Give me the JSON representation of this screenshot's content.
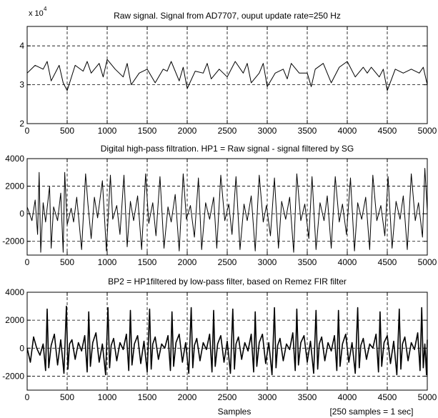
{
  "chart_data": [
    {
      "type": "line",
      "title": "Raw signal. Signal from AD7707, ouput update rate=250 Hz",
      "xlabel": "",
      "ylabel": "",
      "multiplier": {
        "base": "x 10",
        "exponent": "4"
      },
      "xlim": [
        0,
        5000
      ],
      "ylim": [
        2,
        4.5
      ],
      "xticks": [
        0,
        500,
        1000,
        1500,
        2000,
        2500,
        3000,
        3500,
        4000,
        4500,
        5000
      ],
      "xtick_labels": [
        "0",
        "500",
        "1000",
        "1500",
        "2000",
        "2500",
        "3000",
        "3500",
        "4000",
        "4500",
        "5000"
      ],
      "yticks": [
        2,
        3,
        4
      ],
      "ytick_labels": [
        "2",
        "3",
        "4"
      ],
      "grid": true,
      "series": [
        {
          "x": [
            0,
            100,
            200,
            250,
            300,
            400,
            450,
            500,
            600,
            700,
            750,
            800,
            900,
            950,
            1000,
            1100,
            1200,
            1250,
            1300,
            1400,
            1500,
            1600,
            1700,
            1750,
            1800,
            1900,
            1950,
            2000,
            2100,
            2200,
            2250,
            2300,
            2400,
            2500,
            2600,
            2700,
            2750,
            2800,
            2900,
            2950,
            3000,
            3100,
            3200,
            3250,
            3300,
            3400,
            3500,
            3550,
            3600,
            3700,
            3800,
            3900,
            4000,
            4100,
            4200,
            4250,
            4300,
            4400,
            4450,
            4500,
            4600,
            4700,
            4800,
            4900,
            4950,
            5000
          ],
          "values": [
            3.3,
            3.5,
            3.4,
            3.6,
            3.1,
            3.5,
            3.05,
            2.85,
            3.5,
            3.35,
            3.6,
            3.3,
            3.55,
            3.2,
            3.65,
            3.4,
            3.2,
            3.55,
            3.0,
            3.3,
            3.4,
            3.05,
            3.4,
            3.35,
            3.6,
            3.1,
            3.45,
            2.9,
            3.35,
            3.3,
            3.55,
            3.15,
            3.4,
            3.2,
            3.6,
            3.3,
            3.55,
            3.05,
            3.3,
            3.55,
            2.95,
            3.3,
            3.4,
            3.15,
            3.55,
            3.3,
            3.3,
            2.95,
            3.4,
            3.55,
            3.05,
            3.45,
            3.6,
            3.2,
            3.45,
            3.3,
            3.45,
            3.2,
            3.4,
            2.85,
            3.4,
            3.3,
            3.4,
            3.3,
            3.45,
            3.0
          ]
        }
      ]
    },
    {
      "type": "line",
      "title": "Digital high-pass filtration. HP1 = Raw signal - signal filtered by SG",
      "xlabel": "",
      "ylabel": "",
      "xlim": [
        0,
        5000
      ],
      "ylim": [
        -3000,
        4000
      ],
      "xticks": [
        0,
        500,
        1000,
        1500,
        2000,
        2500,
        3000,
        3500,
        4000,
        4500,
        5000
      ],
      "xtick_labels": [
        "0",
        "500",
        "1000",
        "1500",
        "2000",
        "2500",
        "3000",
        "3500",
        "4000",
        "4500",
        "5000"
      ],
      "yticks": [
        -2000,
        0,
        2000,
        4000
      ],
      "ytick_labels": [
        "-2000",
        "0",
        "2000",
        "4000"
      ],
      "grid": true,
      "series": [
        {
          "x": [
            0,
            60,
            100,
            130,
            150,
            170,
            200,
            230,
            280,
            300,
            330,
            380,
            420,
            450,
            470,
            500,
            550,
            580,
            620,
            680,
            730,
            760,
            800,
            840,
            880,
            940,
            990,
            1040,
            1070,
            1120,
            1160,
            1210,
            1250,
            1290,
            1330,
            1380,
            1430,
            1480,
            1520,
            1570,
            1610,
            1660,
            1710,
            1760,
            1800,
            1850,
            1900,
            1950,
            1990,
            2040,
            2090,
            2140,
            2180,
            2230,
            2280,
            2330,
            2370,
            2420,
            2470,
            2520,
            2560,
            2610,
            2660,
            2710,
            2750,
            2800,
            2850,
            2900,
            2950,
            2990,
            3040,
            3090,
            3140,
            3180,
            3230,
            3280,
            3330,
            3370,
            3420,
            3470,
            3520,
            3560,
            3610,
            3660,
            3710,
            3750,
            3800,
            3850,
            3900,
            3940,
            3990,
            4040,
            4090,
            4130,
            4180,
            4230,
            4280,
            4320,
            4370,
            4420,
            4470,
            4510,
            4560,
            4610,
            4660,
            4700,
            4750,
            4800,
            4850,
            4890,
            4940,
            4970,
            5000
          ],
          "values": [
            500,
            -500,
            1000,
            -1500,
            3000,
            -2800,
            800,
            -600,
            2000,
            -2500,
            500,
            -500,
            1500,
            -2800,
            3000,
            -800,
            400,
            -600,
            1200,
            -2600,
            2900,
            700,
            -1800,
            1200,
            -300,
            2400,
            -2700,
            2800,
            -400,
            600,
            -1500,
            2800,
            -2400,
            900,
            -500,
            1300,
            -2600,
            2900,
            -700,
            800,
            -1600,
            2700,
            -2500,
            500,
            -600,
            1400,
            -2700,
            2900,
            -400,
            600,
            -1700,
            2600,
            -2600,
            800,
            -400,
            1200,
            -2500,
            2800,
            -500,
            700,
            -1500,
            2700,
            -2600,
            700,
            -500,
            1300,
            -2700,
            2800,
            -600,
            600,
            -1600,
            2600,
            -2500,
            900,
            -400,
            1200,
            -2800,
            2900,
            -500,
            700,
            -1800,
            2700,
            -2600,
            800,
            -500,
            1300,
            -2500,
            2700,
            -600,
            700,
            -1500,
            2600,
            -2700,
            800,
            -400,
            1200,
            -2600,
            2800,
            -500,
            600,
            -1600,
            2700,
            -2500,
            900,
            -400,
            1300,
            -2600,
            2900,
            -500,
            800,
            -1700,
            3300,
            200
          ]
        }
      ]
    },
    {
      "type": "line",
      "title": "BP2 = HP1filtered by low-pass filter, based on Remez FIR filter",
      "xlabel": "Samples",
      "ylabel": "",
      "note": "[250 samples = 1 sec]",
      "xlim": [
        0,
        5000
      ],
      "ylim": [
        -3000,
        4000
      ],
      "xticks": [
        0,
        500,
        1000,
        1500,
        2000,
        2500,
        3000,
        3500,
        4000,
        4500,
        5000
      ],
      "xtick_labels": [
        "0",
        "500",
        "1000",
        "1500",
        "2000",
        "2500",
        "3000",
        "3500",
        "4000",
        "4500",
        "5000"
      ],
      "yticks": [
        -2000,
        0,
        2000,
        4000
      ],
      "ytick_labels": [
        "-2000",
        "0",
        "2000",
        "4000"
      ],
      "grid": true,
      "series": [
        {
          "x": [
            0,
            40,
            80,
            120,
            160,
            200,
            230,
            250,
            270,
            300,
            340,
            380,
            420,
            460,
            490,
            510,
            530,
            560,
            600,
            640,
            680,
            720,
            750,
            770,
            790,
            820,
            860,
            900,
            940,
            980,
            1010,
            1030,
            1050,
            1080,
            1120,
            1160,
            1200,
            1240,
            1270,
            1290,
            1310,
            1340,
            1380,
            1420,
            1460,
            1500,
            1530,
            1550,
            1570,
            1600,
            1640,
            1680,
            1720,
            1760,
            1790,
            1810,
            1830,
            1860,
            1900,
            1940,
            1980,
            2020,
            2050,
            2070,
            2090,
            2120,
            2160,
            2200,
            2240,
            2280,
            2310,
            2330,
            2350,
            2380,
            2420,
            2460,
            2500,
            2540,
            2570,
            2590,
            2610,
            2640,
            2680,
            2720,
            2760,
            2800,
            2830,
            2850,
            2870,
            2900,
            2940,
            2980,
            3020,
            3060,
            3090,
            3110,
            3130,
            3160,
            3200,
            3240,
            3280,
            3320,
            3350,
            3370,
            3390,
            3420,
            3460,
            3500,
            3540,
            3580,
            3610,
            3630,
            3650,
            3680,
            3720,
            3760,
            3800,
            3840,
            3870,
            3890,
            3910,
            3940,
            3980,
            4020,
            4060,
            4100,
            4130,
            4150,
            4170,
            4200,
            4240,
            4280,
            4320,
            4360,
            4390,
            4410,
            4430,
            4460,
            4500,
            4540,
            4580,
            4620,
            4650,
            4670,
            4690,
            4720,
            4760,
            4800,
            4840,
            4880,
            4910,
            4930,
            4950,
            4970,
            4990,
            5000
          ],
          "values": [
            0,
            -1000,
            800,
            0,
            -500,
            300,
            -1600,
            2800,
            -1400,
            200,
            1000,
            -1200,
            600,
            -1800,
            3000,
            -1500,
            300,
            600,
            -800,
            400,
            -200,
            900,
            -1700,
            2600,
            -1300,
            400,
            1100,
            -1000,
            300,
            -1900,
            2900,
            -1400,
            200,
            700,
            -900,
            400,
            -100,
            1000,
            -1600,
            2700,
            -1200,
            300,
            900,
            -1100,
            500,
            -1700,
            2800,
            -1500,
            300,
            800,
            -800,
            300,
            0,
            900,
            -1600,
            2600,
            -1300,
            400,
            1000,
            -1000,
            400,
            -1800,
            2900,
            -1400,
            200,
            700,
            -900,
            400,
            -100,
            1000,
            -1700,
            2700,
            -1300,
            300,
            900,
            -1000,
            500,
            -1800,
            2800,
            -1500,
            300,
            800,
            -800,
            400,
            -200,
            1000,
            -1700,
            2600,
            -1300,
            400,
            1000,
            -1100,
            400,
            -1900,
            2900,
            -1400,
            200,
            700,
            -900,
            300,
            -100,
            1100,
            -1600,
            2800,
            -1200,
            400,
            900,
            -1000,
            500,
            -1800,
            2700,
            -1500,
            300,
            800,
            -900,
            400,
            -200,
            900,
            -1600,
            2700,
            -1300,
            300,
            1000,
            -1000,
            400,
            -1800,
            2900,
            -1400,
            200,
            700,
            -800,
            300,
            0,
            1000,
            -1700,
            2600,
            -1300,
            400,
            900,
            -1100,
            500,
            -1900,
            2800,
            -1500,
            300,
            800,
            -900,
            400,
            -100,
            1100,
            -1600,
            2900,
            -1400,
            300,
            -1900,
            600
          ]
        }
      ]
    }
  ]
}
